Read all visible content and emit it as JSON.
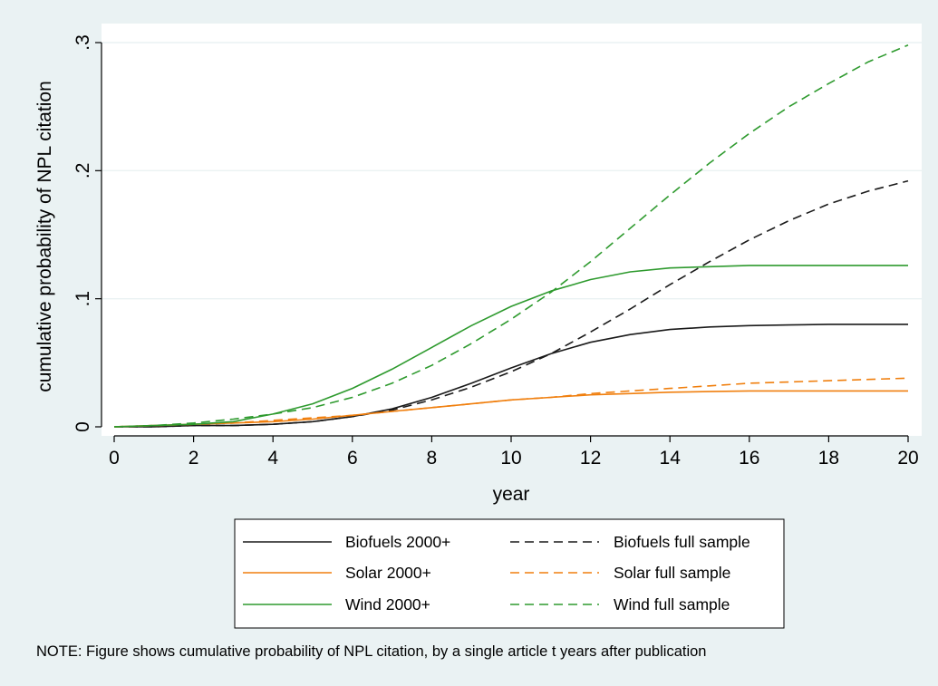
{
  "colors": {
    "outer_bg": "#eaf2f3",
    "plot_bg": "#ffffff",
    "grid": "#eaf2f3",
    "axis": "#000000",
    "legend_bg": "#ffffff"
  },
  "note": "NOTE: Figure shows cumulative probability of NPL citation, by a single article t years after publication",
  "chart_data": {
    "type": "line",
    "xlabel": "year",
    "ylabel": "cumulative probability of NPL citation",
    "xlim": [
      0,
      20
    ],
    "ylim": [
      0,
      0.3
    ],
    "grid": true,
    "legend_position": "bottom",
    "x_ticks": [
      0,
      2,
      4,
      6,
      8,
      10,
      12,
      14,
      16,
      18,
      20
    ],
    "x_tick_labels": [
      "0",
      "2",
      "4",
      "6",
      "8",
      "10",
      "12",
      "14",
      "16",
      "18",
      "20"
    ],
    "y_ticks": [
      0,
      0.1,
      0.2,
      0.3
    ],
    "y_tick_labels": [
      "0",
      ".1",
      ".2",
      ".3"
    ],
    "x": [
      0,
      1,
      2,
      3,
      4,
      5,
      6,
      7,
      8,
      9,
      10,
      11,
      12,
      13,
      14,
      15,
      16,
      17,
      18,
      19,
      20
    ],
    "series": [
      {
        "name": "Biofuels 2000+",
        "color": "#1a1a1a",
        "dash": "solid",
        "values": [
          0,
          0,
          0.001,
          0.001,
          0.002,
          0.004,
          0.008,
          0.014,
          0.023,
          0.034,
          0.046,
          0.057,
          0.066,
          0.072,
          0.076,
          0.078,
          0.079,
          0.0795,
          0.08,
          0.08,
          0.08
        ]
      },
      {
        "name": "Biofuels full sample",
        "color": "#1a1a1a",
        "dash": "dashed",
        "values": [
          0,
          0,
          0.001,
          0.001,
          0.002,
          0.004,
          0.008,
          0.013,
          0.021,
          0.031,
          0.043,
          0.057,
          0.074,
          0.092,
          0.111,
          0.129,
          0.146,
          0.161,
          0.174,
          0.184,
          0.192
        ]
      },
      {
        "name": "Solar 2000+",
        "color": "#f07f0e",
        "dash": "solid",
        "values": [
          0,
          0.001,
          0.002,
          0.003,
          0.004,
          0.006,
          0.009,
          0.012,
          0.015,
          0.018,
          0.021,
          0.023,
          0.025,
          0.026,
          0.027,
          0.0275,
          0.028,
          0.028,
          0.028,
          0.028,
          0.028
        ]
      },
      {
        "name": "Solar full sample",
        "color": "#f07f0e",
        "dash": "dashed",
        "values": [
          0,
          0.001,
          0.002,
          0.003,
          0.005,
          0.007,
          0.009,
          0.012,
          0.015,
          0.018,
          0.021,
          0.023,
          0.026,
          0.028,
          0.03,
          0.032,
          0.034,
          0.035,
          0.036,
          0.037,
          0.038
        ]
      },
      {
        "name": "Wind 2000+",
        "color": "#2e9a2e",
        "dash": "solid",
        "values": [
          0,
          0.001,
          0.002,
          0.004,
          0.01,
          0.018,
          0.03,
          0.045,
          0.062,
          0.079,
          0.094,
          0.106,
          0.115,
          0.121,
          0.124,
          0.125,
          0.126,
          0.126,
          0.126,
          0.126,
          0.126
        ]
      },
      {
        "name": "Wind full sample",
        "color": "#2e9a2e",
        "dash": "dashed",
        "values": [
          0,
          0.001,
          0.003,
          0.006,
          0.01,
          0.015,
          0.023,
          0.034,
          0.048,
          0.065,
          0.084,
          0.105,
          0.129,
          0.155,
          0.181,
          0.206,
          0.229,
          0.25,
          0.268,
          0.285,
          0.298
        ]
      }
    ]
  }
}
